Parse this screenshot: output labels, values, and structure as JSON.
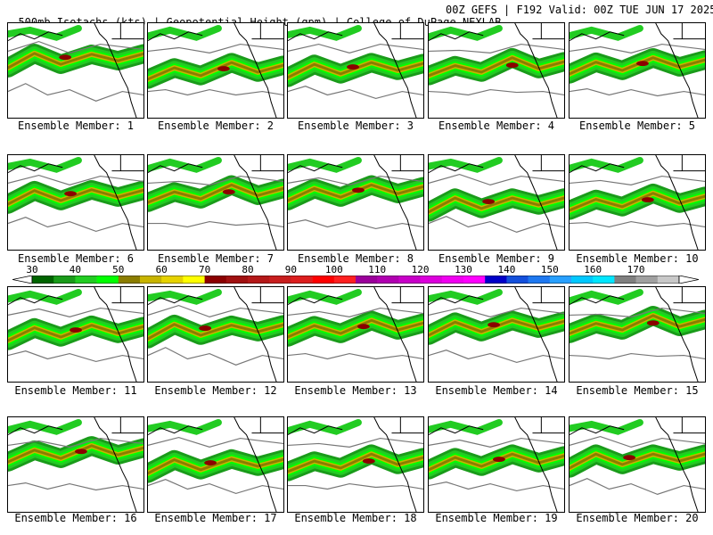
{
  "header": {
    "left": "500mb Isotachs (kts) | Geopotential Height (gpm) | College of DuPage NEXLAB",
    "right": "00Z GEFS | F192 Valid: 00Z TUE JUN 17 2025"
  },
  "members": [
    "Ensemble Member: 1",
    "Ensemble Member: 2",
    "Ensemble Member: 3",
    "Ensemble Member: 4",
    "Ensemble Member: 5",
    "Ensemble Member: 6",
    "Ensemble Member: 7",
    "Ensemble Member: 8",
    "Ensemble Member: 9",
    "Ensemble Member: 10",
    "Ensemble Member: 11",
    "Ensemble Member: 12",
    "Ensemble Member: 13",
    "Ensemble Member: 14",
    "Ensemble Member: 15",
    "Ensemble Member: 16",
    "Ensemble Member: 17",
    "Ensemble Member: 18",
    "Ensemble Member: 19",
    "Ensemble Member: 20"
  ],
  "colorbar": {
    "labels": [
      "30",
      "40",
      "50",
      "60",
      "70",
      "80",
      "90",
      "100",
      "110",
      "120",
      "130",
      "140",
      "150",
      "160",
      "170"
    ],
    "colors": [
      "#006400",
      "#1a9b1a",
      "#22cc22",
      "#00ff00",
      "#8b7d00",
      "#c8b400",
      "#e6d200",
      "#ffff00",
      "#8b0000",
      "#a01010",
      "#b41818",
      "#c81e1e",
      "#dc1e1e",
      "#ff0000",
      "#ff2020",
      "#9b009b",
      "#b000b0",
      "#c800c8",
      "#dc00dc",
      "#f000f0",
      "#ff00ff",
      "#0000c8",
      "#1450dc",
      "#1e78f0",
      "#28a0ff",
      "#00c8ff",
      "#00e6ff",
      "#808080",
      "#a0a0a0",
      "#c8c8c8"
    ],
    "end_color": "#ffffff"
  }
}
